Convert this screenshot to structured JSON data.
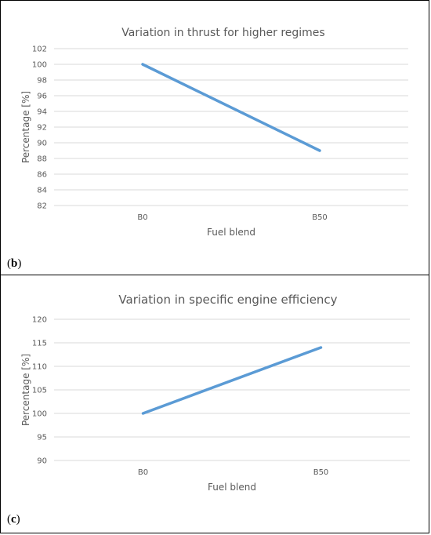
{
  "panels": [
    {
      "label": "b"
    },
    {
      "label": "c"
    }
  ],
  "chart_data": [
    {
      "type": "line",
      "title": "Variation in thrust for higher regimes",
      "xlabel": "Fuel blend",
      "ylabel": "Percentage [%]",
      "categories": [
        "B0",
        "B50"
      ],
      "series": [
        {
          "values": [
            100,
            89
          ]
        }
      ],
      "ylim": [
        82,
        102
      ],
      "yticks": [
        82,
        84,
        86,
        88,
        90,
        92,
        94,
        96,
        98,
        100,
        102
      ],
      "grid": true,
      "color": "#5b9bd5"
    },
    {
      "type": "line",
      "title": "Variation in specific engine efficiency",
      "xlabel": "Fuel blend",
      "ylabel": "Percentage [%]",
      "categories": [
        "B0",
        "B50"
      ],
      "series": [
        {
          "values": [
            100,
            114
          ]
        }
      ],
      "ylim": [
        90,
        120
      ],
      "yticks": [
        90,
        95,
        100,
        105,
        110,
        115,
        120
      ],
      "grid": true,
      "color": "#5b9bd5"
    }
  ]
}
